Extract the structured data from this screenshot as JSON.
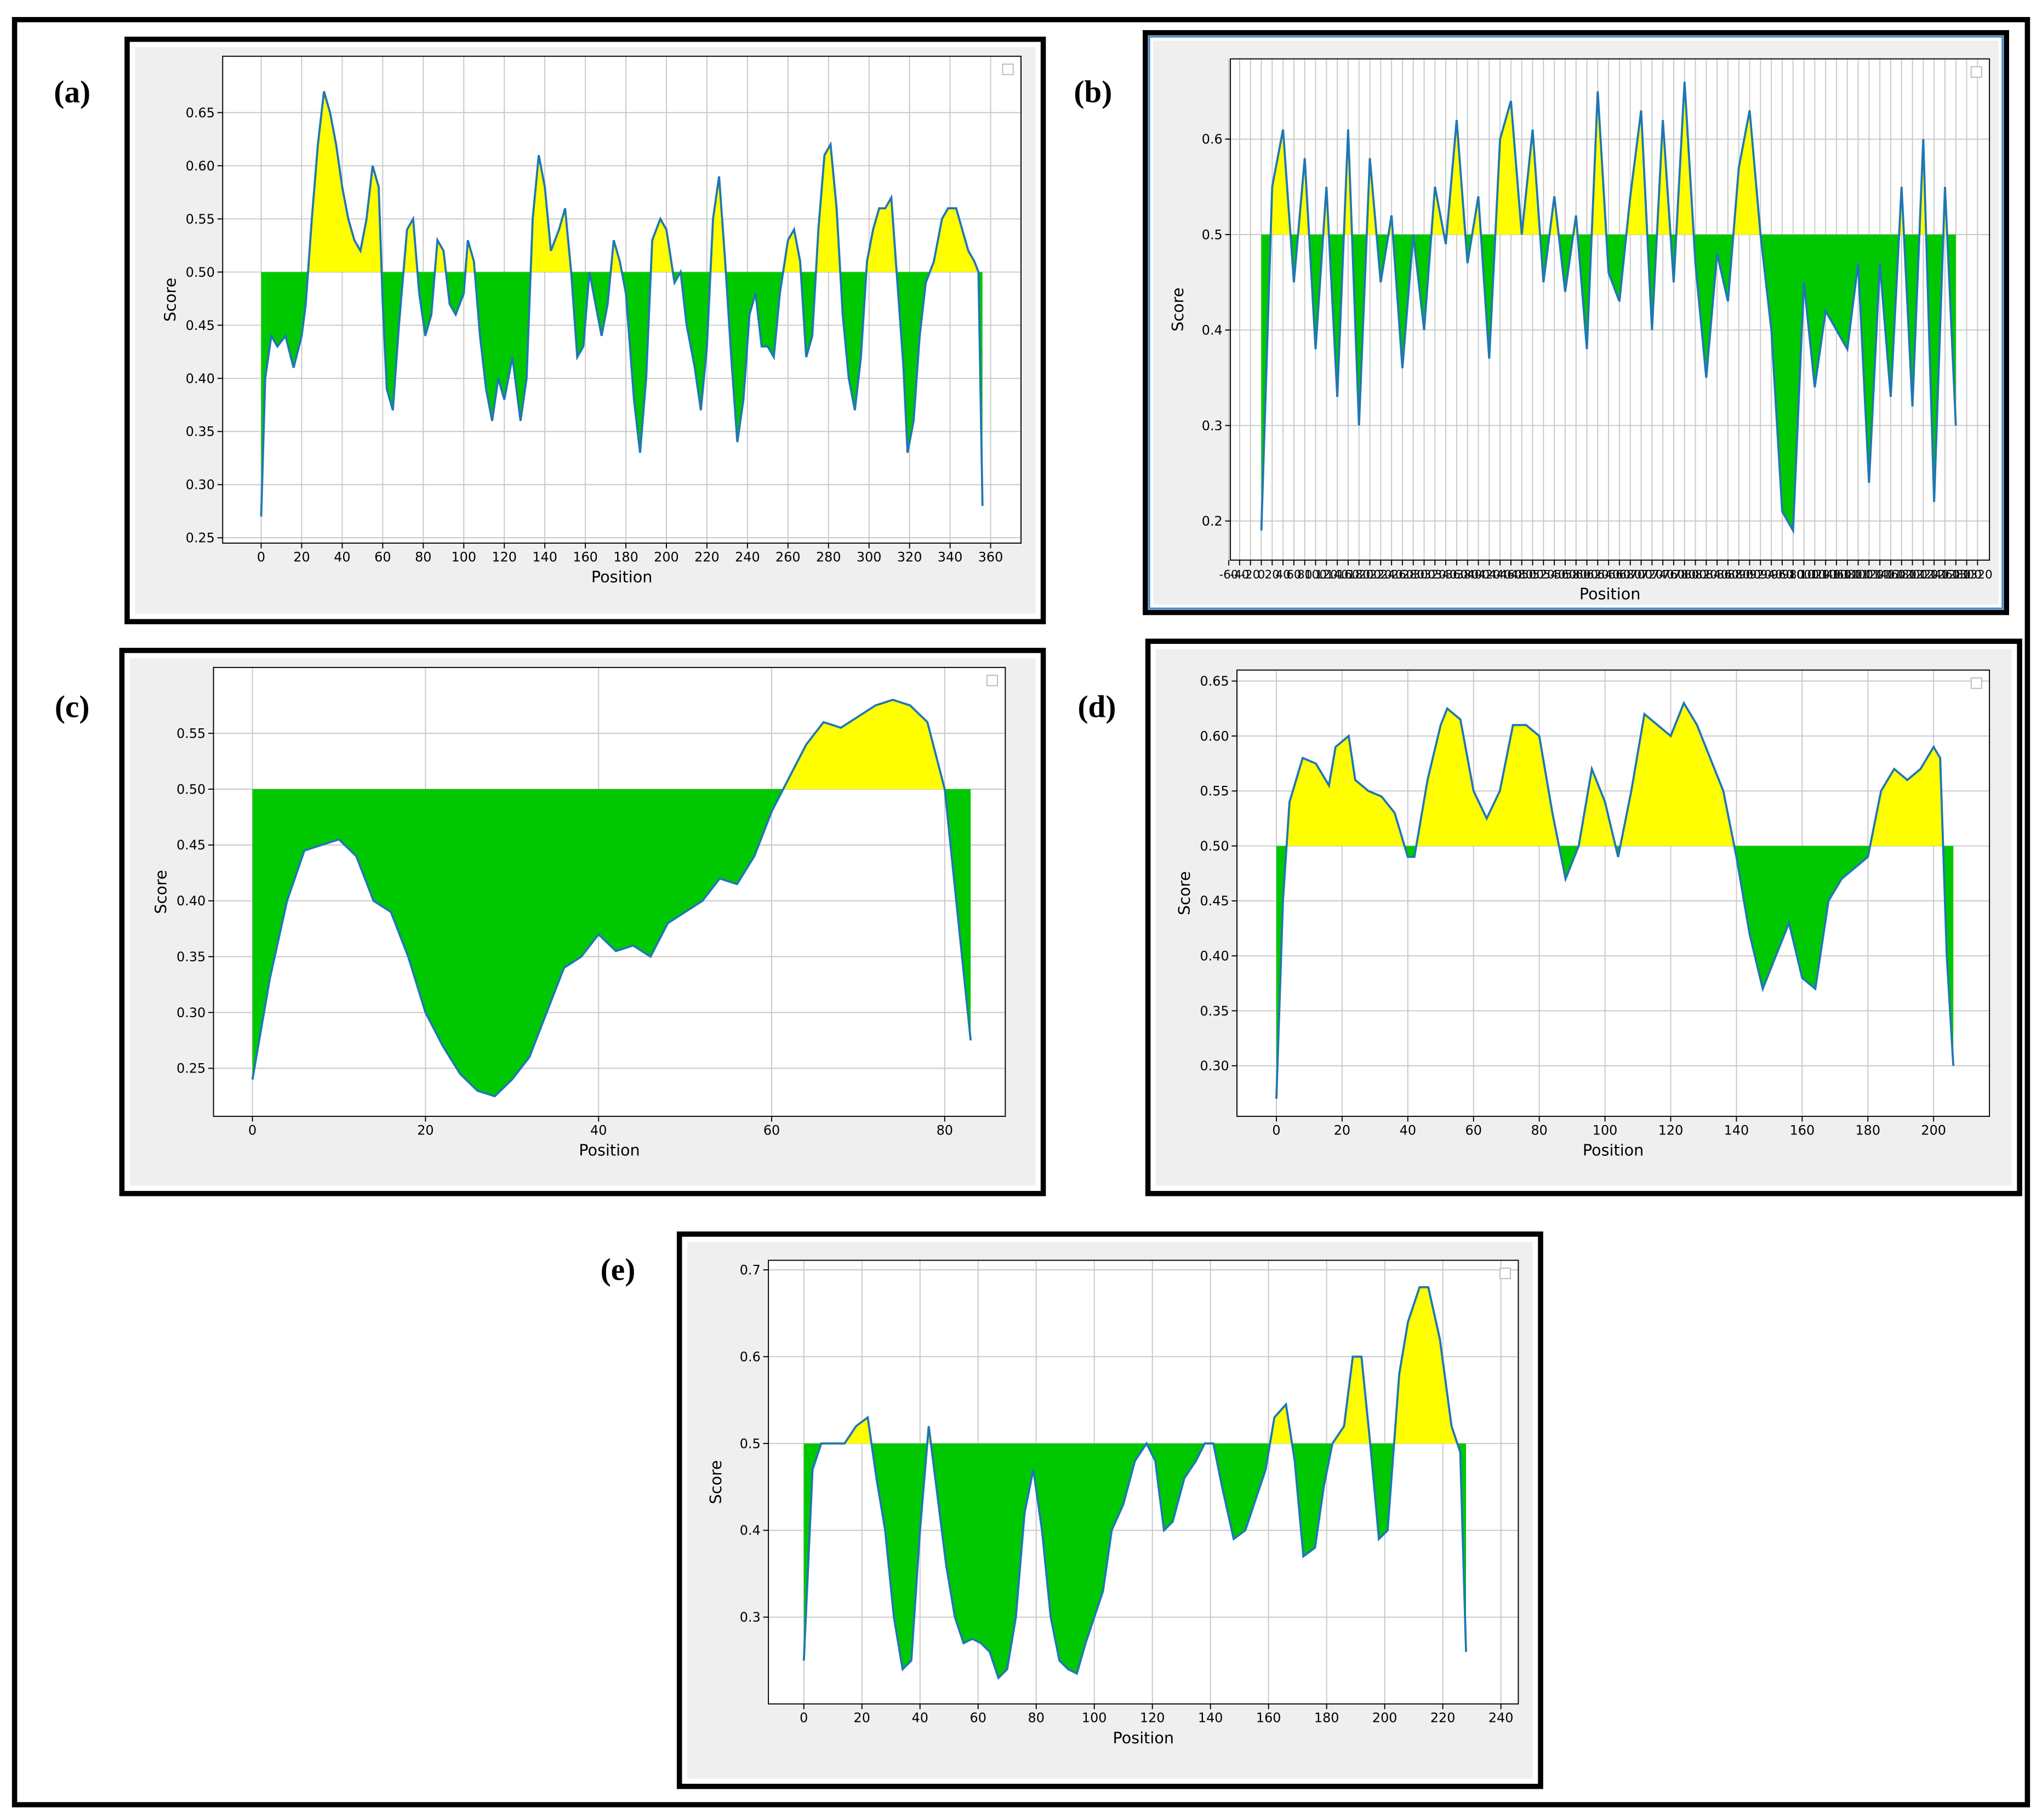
{
  "chart_data": [
    {
      "type": "area",
      "label": "(a)",
      "xlabel": "Position",
      "ylabel": "Score",
      "threshold": 0.5,
      "line_color": "#1f77b4",
      "above_color": "#ffff00",
      "below_color": "#00c800",
      "grid": true,
      "xlim": [
        -19,
        375
      ],
      "ylim": [
        0.245,
        0.703
      ],
      "xticks": [
        0,
        20,
        40,
        60,
        80,
        100,
        120,
        140,
        160,
        180,
        200,
        220,
        240,
        260,
        280,
        300,
        320,
        340,
        360
      ],
      "yticks": [
        {
          "value": 0.25,
          "label": "0.25"
        },
        {
          "value": 0.3,
          "label": "0.30"
        },
        {
          "value": 0.35,
          "label": "0.35"
        },
        {
          "value": 0.4,
          "label": "0.40"
        },
        {
          "value": 0.45,
          "label": "0.45"
        },
        {
          "value": 0.5,
          "label": "0.50"
        },
        {
          "value": 0.55,
          "label": "0.55"
        },
        {
          "value": 0.6,
          "label": "0.60"
        },
        {
          "value": 0.65,
          "label": "0.65"
        }
      ],
      "x": [
        0,
        2,
        5,
        8,
        12,
        16,
        20,
        22,
        25,
        28,
        31,
        34,
        37,
        40,
        43,
        46,
        49,
        52,
        55,
        58,
        60,
        62,
        65,
        68,
        72,
        75,
        78,
        81,
        84,
        87,
        90,
        93,
        96,
        100,
        102,
        105,
        108,
        111,
        114,
        117,
        120,
        124,
        128,
        131,
        134,
        137,
        140,
        143,
        147,
        150,
        153,
        156,
        159,
        162,
        165,
        168,
        171,
        174,
        177,
        180,
        184,
        187,
        190,
        193,
        197,
        200,
        204,
        207,
        210,
        214,
        217,
        220,
        223,
        226,
        229,
        232,
        235,
        238,
        241,
        244,
        247,
        250,
        253,
        256,
        260,
        263,
        266,
        269,
        272,
        275,
        278,
        281,
        284,
        287,
        290,
        293,
        296,
        299,
        302,
        305,
        308,
        311,
        314,
        317,
        319,
        322,
        325,
        328,
        332,
        336,
        339,
        343,
        346,
        349,
        352,
        354,
        356
      ],
      "values": [
        0.27,
        0.4,
        0.44,
        0.43,
        0.44,
        0.41,
        0.44,
        0.47,
        0.55,
        0.62,
        0.67,
        0.65,
        0.62,
        0.58,
        0.55,
        0.53,
        0.52,
        0.55,
        0.6,
        0.58,
        0.47,
        0.39,
        0.37,
        0.45,
        0.54,
        0.55,
        0.48,
        0.44,
        0.46,
        0.53,
        0.52,
        0.47,
        0.46,
        0.48,
        0.53,
        0.51,
        0.44,
        0.39,
        0.36,
        0.4,
        0.38,
        0.42,
        0.36,
        0.4,
        0.55,
        0.61,
        0.58,
        0.52,
        0.54,
        0.56,
        0.5,
        0.42,
        0.43,
        0.5,
        0.47,
        0.44,
        0.47,
        0.53,
        0.51,
        0.48,
        0.38,
        0.33,
        0.4,
        0.53,
        0.55,
        0.54,
        0.49,
        0.5,
        0.45,
        0.41,
        0.37,
        0.43,
        0.55,
        0.59,
        0.51,
        0.42,
        0.34,
        0.38,
        0.46,
        0.48,
        0.43,
        0.43,
        0.42,
        0.48,
        0.53,
        0.54,
        0.51,
        0.42,
        0.44,
        0.54,
        0.61,
        0.62,
        0.56,
        0.46,
        0.4,
        0.37,
        0.42,
        0.51,
        0.54,
        0.56,
        0.56,
        0.57,
        0.49,
        0.41,
        0.33,
        0.36,
        0.44,
        0.49,
        0.51,
        0.55,
        0.56,
        0.56,
        0.54,
        0.52,
        0.51,
        0.5,
        0.28
      ]
    },
    {
      "type": "area",
      "label": "(b)",
      "xlabel": "Position",
      "ylabel": "Score",
      "threshold": 0.5,
      "line_color": "#1f77b4",
      "above_color": "#ffff00",
      "below_color": "#00c800",
      "grid": true,
      "xlim": [
        -57,
        1342
      ],
      "ylim": [
        0.159,
        0.684
      ],
      "xticks": [
        -60,
        -40,
        -20,
        0,
        20,
        40,
        60,
        80,
        100,
        120,
        140,
        160,
        180,
        200,
        220,
        240,
        260,
        280,
        300,
        320,
        340,
        360,
        380,
        400,
        420,
        440,
        460,
        480,
        500,
        520,
        540,
        560,
        580,
        600,
        620,
        640,
        660,
        680,
        700,
        720,
        740,
        760,
        780,
        800,
        820,
        840,
        860,
        880,
        900,
        920,
        940,
        960,
        980,
        1000,
        1020,
        1040,
        1060,
        1080,
        1100,
        1120,
        1140,
        1160,
        1180,
        1200,
        1220,
        1240,
        1260,
        1280,
        1300,
        1320
      ],
      "yticks": [
        0.2,
        0.3,
        0.4,
        0.5,
        0.6
      ],
      "x": [
        0,
        20,
        40,
        60,
        80,
        100,
        120,
        140,
        160,
        180,
        200,
        220,
        240,
        260,
        280,
        300,
        320,
        340,
        360,
        380,
        400,
        420,
        440,
        460,
        480,
        500,
        520,
        540,
        560,
        580,
        600,
        620,
        640,
        660,
        680,
        700,
        720,
        740,
        760,
        780,
        800,
        820,
        840,
        860,
        880,
        900,
        920,
        940,
        960,
        980,
        1000,
        1020,
        1040,
        1060,
        1080,
        1100,
        1120,
        1140,
        1160,
        1180,
        1200,
        1220,
        1240,
        1260,
        1280
      ],
      "values": [
        0.19,
        0.55,
        0.61,
        0.45,
        0.58,
        0.38,
        0.55,
        0.33,
        0.61,
        0.3,
        0.58,
        0.45,
        0.52,
        0.36,
        0.5,
        0.4,
        0.55,
        0.49,
        0.62,
        0.47,
        0.54,
        0.37,
        0.6,
        0.64,
        0.5,
        0.61,
        0.45,
        0.54,
        0.44,
        0.52,
        0.38,
        0.65,
        0.46,
        0.43,
        0.54,
        0.63,
        0.4,
        0.62,
        0.45,
        0.66,
        0.47,
        0.35,
        0.48,
        0.43,
        0.57,
        0.63,
        0.5,
        0.4,
        0.21,
        0.19,
        0.45,
        0.34,
        0.42,
        0.4,
        0.38,
        0.47,
        0.24,
        0.47,
        0.33,
        0.55,
        0.32,
        0.6,
        0.22,
        0.55,
        0.3
      ]
    },
    {
      "type": "area",
      "label": "(c)",
      "xlabel": "Position",
      "ylabel": "Score",
      "threshold": 0.5,
      "line_color": "#1f77b4",
      "above_color": "#ffff00",
      "below_color": "#00c800",
      "grid": true,
      "xlim": [
        -4.5,
        87
      ],
      "ylim": [
        0.207,
        0.609
      ],
      "xticks": [
        0,
        20,
        40,
        60,
        80
      ],
      "yticks": [
        {
          "value": 0.25,
          "label": "0.25"
        },
        {
          "value": 0.3,
          "label": "0.30"
        },
        {
          "value": 0.35,
          "label": "0.35"
        },
        {
          "value": 0.4,
          "label": "0.40"
        },
        {
          "value": 0.45,
          "label": "0.45"
        },
        {
          "value": 0.5,
          "label": "0.50"
        },
        {
          "value": 0.55,
          "label": "0.55"
        }
      ],
      "x": [
        0,
        2,
        4,
        6,
        8,
        10,
        12,
        14,
        16,
        18,
        20,
        22,
        24,
        26,
        28,
        30,
        32,
        34,
        36,
        38,
        40,
        42,
        44,
        46,
        48,
        50,
        52,
        54,
        56,
        58,
        60,
        62,
        64,
        66,
        68,
        70,
        72,
        74,
        76,
        78,
        80,
        82,
        83
      ],
      "values": [
        0.24,
        0.33,
        0.4,
        0.445,
        0.45,
        0.455,
        0.44,
        0.4,
        0.39,
        0.35,
        0.3,
        0.27,
        0.245,
        0.23,
        0.225,
        0.24,
        0.26,
        0.3,
        0.34,
        0.35,
        0.37,
        0.355,
        0.36,
        0.35,
        0.38,
        0.39,
        0.4,
        0.42,
        0.415,
        0.44,
        0.48,
        0.51,
        0.54,
        0.56,
        0.555,
        0.565,
        0.575,
        0.58,
        0.575,
        0.56,
        0.5,
        0.35,
        0.275
      ]
    },
    {
      "type": "area",
      "label": "(d)",
      "xlabel": "Position",
      "ylabel": "Score",
      "threshold": 0.5,
      "line_color": "#1f77b4",
      "above_color": "#ffff00",
      "below_color": "#00c800",
      "grid": true,
      "xlim": [
        -12,
        217
      ],
      "ylim": [
        0.254,
        0.66
      ],
      "xticks": [
        0,
        20,
        40,
        60,
        80,
        100,
        120,
        140,
        160,
        180,
        200
      ],
      "yticks": [
        {
          "value": 0.3,
          "label": "0.30"
        },
        {
          "value": 0.35,
          "label": "0.35"
        },
        {
          "value": 0.4,
          "label": "0.40"
        },
        {
          "value": 0.45,
          "label": "0.45"
        },
        {
          "value": 0.5,
          "label": "0.50"
        },
        {
          "value": 0.55,
          "label": "0.55"
        },
        {
          "value": 0.6,
          "label": "0.60"
        },
        {
          "value": 0.65,
          "label": "0.65"
        }
      ],
      "x": [
        0,
        2,
        4,
        8,
        12,
        16,
        18,
        22,
        24,
        28,
        32,
        36,
        40,
        42,
        46,
        50,
        52,
        56,
        60,
        64,
        68,
        72,
        76,
        80,
        84,
        88,
        92,
        96,
        100,
        104,
        108,
        112,
        116,
        120,
        124,
        128,
        132,
        136,
        140,
        144,
        148,
        152,
        156,
        160,
        164,
        168,
        172,
        176,
        180,
        184,
        188,
        192,
        196,
        200,
        202,
        204,
        206
      ],
      "values": [
        0.27,
        0.45,
        0.54,
        0.58,
        0.575,
        0.555,
        0.59,
        0.6,
        0.56,
        0.55,
        0.545,
        0.53,
        0.49,
        0.49,
        0.56,
        0.61,
        0.625,
        0.615,
        0.55,
        0.525,
        0.55,
        0.61,
        0.61,
        0.6,
        0.53,
        0.47,
        0.5,
        0.57,
        0.54,
        0.49,
        0.55,
        0.62,
        0.61,
        0.6,
        0.63,
        0.61,
        0.58,
        0.55,
        0.49,
        0.42,
        0.37,
        0.4,
        0.43,
        0.38,
        0.37,
        0.45,
        0.47,
        0.48,
        0.49,
        0.55,
        0.57,
        0.56,
        0.57,
        0.59,
        0.58,
        0.4,
        0.3
      ]
    },
    {
      "type": "area",
      "label": "(e)",
      "xlabel": "Position",
      "ylabel": "Score",
      "threshold": 0.5,
      "line_color": "#1f77b4",
      "above_color": "#ffff00",
      "below_color": "#00c800",
      "grid": true,
      "xlim": [
        -12.2,
        246
      ],
      "ylim": [
        0.2,
        0.711
      ],
      "xticks": [
        0,
        20,
        40,
        60,
        80,
        100,
        120,
        140,
        160,
        180,
        200,
        220,
        240
      ],
      "yticks": [
        0.3,
        0.4,
        0.5,
        0.6,
        0.7
      ],
      "x": [
        0,
        3,
        6,
        10,
        14,
        18,
        22,
        25,
        28,
        31,
        34,
        37,
        40,
        43,
        46,
        49,
        52,
        55,
        58,
        61,
        64,
        67,
        70,
        73,
        76,
        79,
        82,
        85,
        88,
        91,
        94,
        97,
        100,
        103,
        106,
        110,
        114,
        118,
        121,
        124,
        127,
        131,
        135,
        138,
        141,
        144,
        148,
        152,
        156,
        159,
        162,
        166,
        169,
        172,
        176,
        179,
        182,
        186,
        189,
        192,
        195,
        198,
        201,
        205,
        208,
        212,
        215,
        219,
        223,
        226,
        228
      ],
      "values": [
        0.25,
        0.47,
        0.5,
        0.5,
        0.5,
        0.52,
        0.53,
        0.46,
        0.4,
        0.3,
        0.24,
        0.25,
        0.4,
        0.52,
        0.44,
        0.36,
        0.3,
        0.27,
        0.275,
        0.27,
        0.26,
        0.23,
        0.24,
        0.3,
        0.42,
        0.47,
        0.4,
        0.3,
        0.25,
        0.24,
        0.235,
        0.27,
        0.3,
        0.33,
        0.4,
        0.43,
        0.48,
        0.5,
        0.48,
        0.4,
        0.41,
        0.46,
        0.48,
        0.5,
        0.5,
        0.45,
        0.39,
        0.4,
        0.44,
        0.47,
        0.53,
        0.545,
        0.48,
        0.37,
        0.38,
        0.45,
        0.5,
        0.52,
        0.6,
        0.6,
        0.5,
        0.39,
        0.4,
        0.58,
        0.64,
        0.68,
        0.68,
        0.62,
        0.52,
        0.49,
        0.26
      ]
    }
  ]
}
